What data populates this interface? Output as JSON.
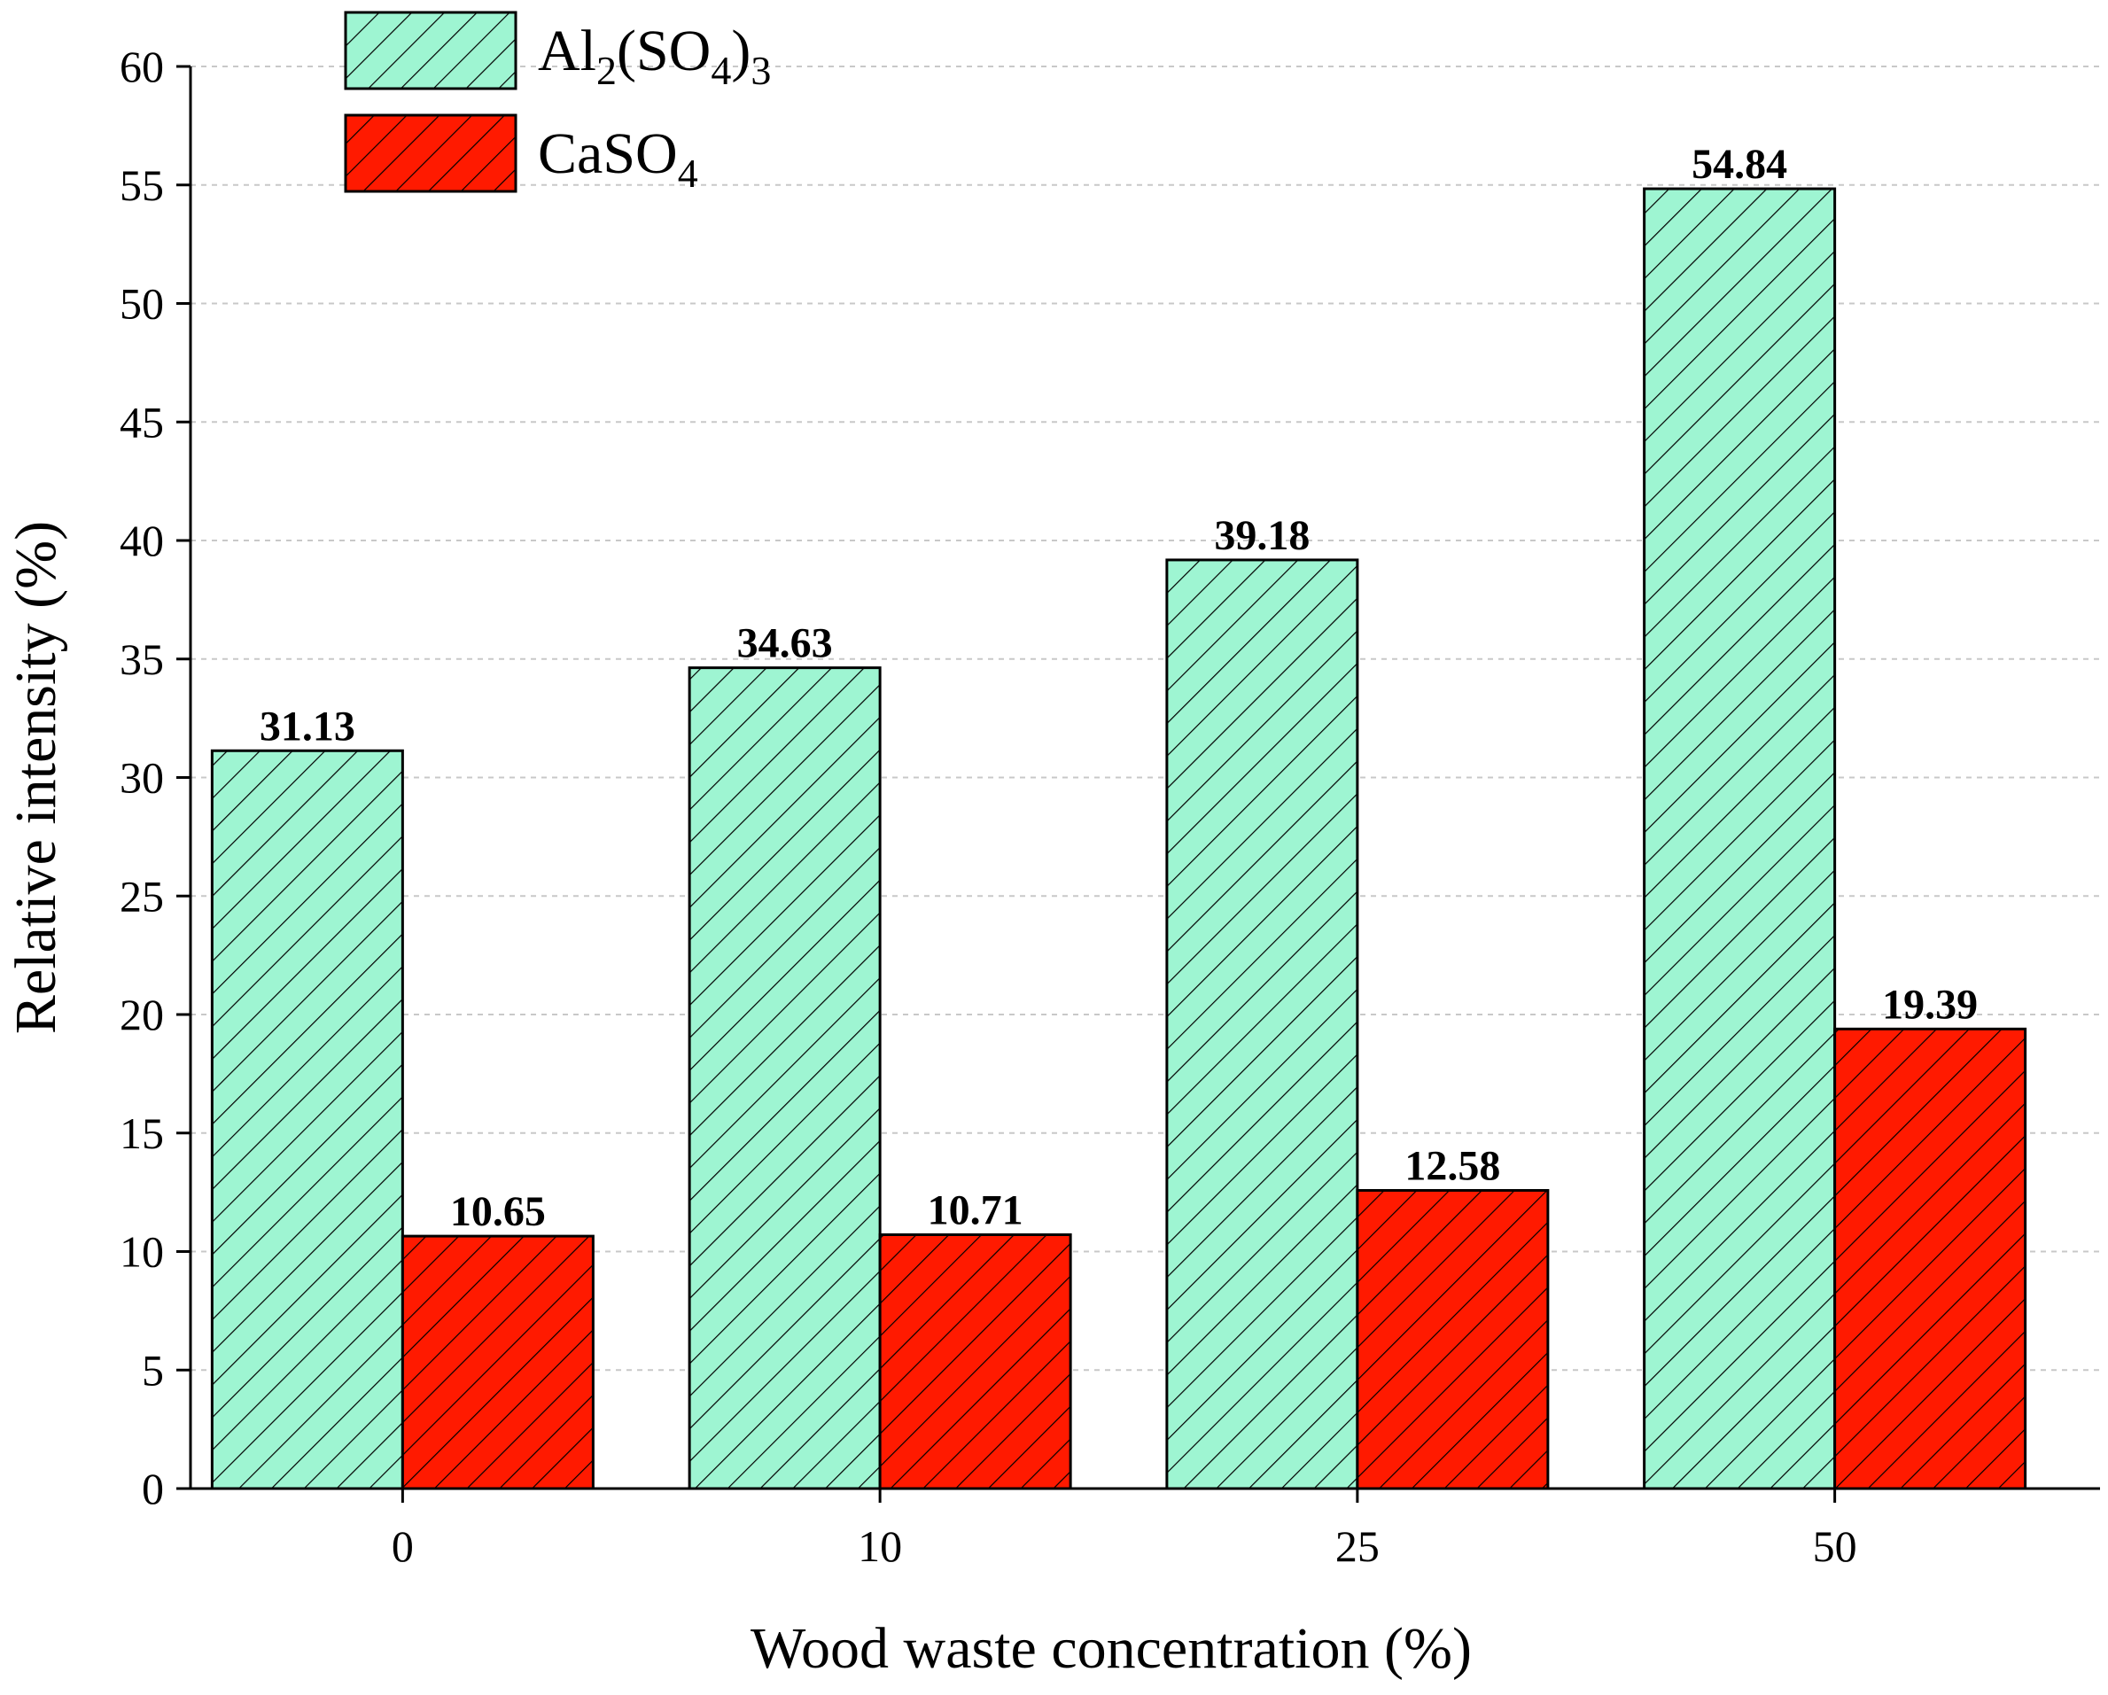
{
  "chart_data": {
    "type": "bar",
    "categories": [
      "0",
      "10",
      "25",
      "50"
    ],
    "series": [
      {
        "name": "Al2(SO4)3",
        "legend_parts": [
          {
            "text": "Al",
            "sub": false
          },
          {
            "text": "2",
            "sub": true
          },
          {
            "text": "(SO",
            "sub": false
          },
          {
            "text": "4",
            "sub": true
          },
          {
            "text": ")",
            "sub": false
          },
          {
            "text": "3",
            "sub": true
          }
        ],
        "values": [
          31.13,
          34.63,
          39.18,
          54.84
        ],
        "value_labels": [
          "31.13",
          "34.63",
          "39.18",
          "54.84"
        ],
        "color": "#9ef5d2",
        "pattern": "diagonal-hatch"
      },
      {
        "name": "CaSO4",
        "legend_parts": [
          {
            "text": "CaSO",
            "sub": false
          },
          {
            "text": "4",
            "sub": true
          }
        ],
        "values": [
          10.65,
          10.71,
          12.58,
          19.39
        ],
        "value_labels": [
          "10.65",
          "10.71",
          "12.58",
          "19.39"
        ],
        "color": "#ff1a00",
        "pattern": "diagonal-hatch"
      }
    ],
    "xlabel": "Wood waste concentration (%)",
    "ylabel": "Relative intensity (%)",
    "ylim": [
      0,
      60
    ],
    "yticks": [
      0,
      5,
      10,
      15,
      20,
      25,
      30,
      35,
      40,
      45,
      50,
      55,
      60
    ],
    "grid": "horizontal dashed",
    "legend_position": "top-left"
  }
}
